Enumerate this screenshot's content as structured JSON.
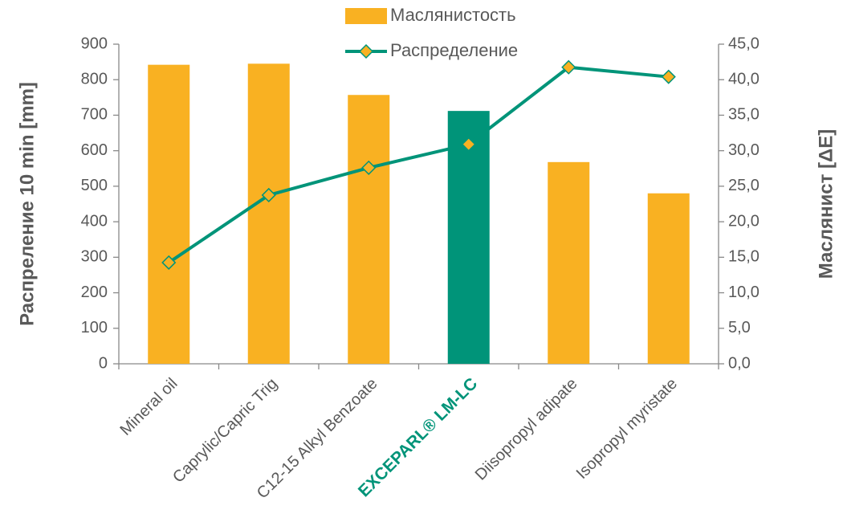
{
  "chart_data": {
    "type": "bar_line",
    "categories": [
      "Mineral oil",
      "Caprylic/Capric Trig",
      "C12-15 Alkyl Benzoate",
      "EXCEPARL® LM-LC",
      "Diisopropyl adipate",
      "Isopropyl myristate"
    ],
    "category_colors": [
      "#595959",
      "#595959",
      "#595959",
      "#009479",
      "#595959",
      "#595959"
    ],
    "series": [
      {
        "name": "Маслянистость",
        "type": "bar",
        "axis": "y2",
        "color": "#F9B122",
        "colors": [
          "#F9B122",
          "#F9B122",
          "#F9B122",
          "#009479",
          "#F9B122",
          "#F9B122"
        ],
        "values": [
          42.1,
          42.25,
          37.85,
          35.6,
          28.4,
          24.0
        ]
      },
      {
        "name": "Распределение",
        "type": "line",
        "axis": "y",
        "color": "#009479",
        "marker_color": "#F9B122",
        "values": [
          285,
          475,
          552,
          618,
          835,
          808
        ]
      }
    ],
    "ylabel": "Распреление  10 min [mm]",
    "y2label": "Маслянист [ΔE]",
    "ylim": [
      0,
      900
    ],
    "yticks": [
      0,
      100,
      200,
      300,
      400,
      500,
      600,
      700,
      800,
      900
    ],
    "y2lim": [
      0,
      45
    ],
    "y2ticks": [
      {
        "value": 0,
        "label": "0,0"
      },
      {
        "value": 5,
        "label": "5,0"
      },
      {
        "value": 10,
        "label": "10,0"
      },
      {
        "value": 15,
        "label": "15,0"
      },
      {
        "value": 20,
        "label": "20,0"
      },
      {
        "value": 25,
        "label": "25,0"
      },
      {
        "value": 30,
        "label": "30,0"
      },
      {
        "value": 35,
        "label": "35,0"
      },
      {
        "value": 40,
        "label": "40,0"
      },
      {
        "value": 45,
        "label": "45,0"
      }
    ],
    "grid": false
  }
}
